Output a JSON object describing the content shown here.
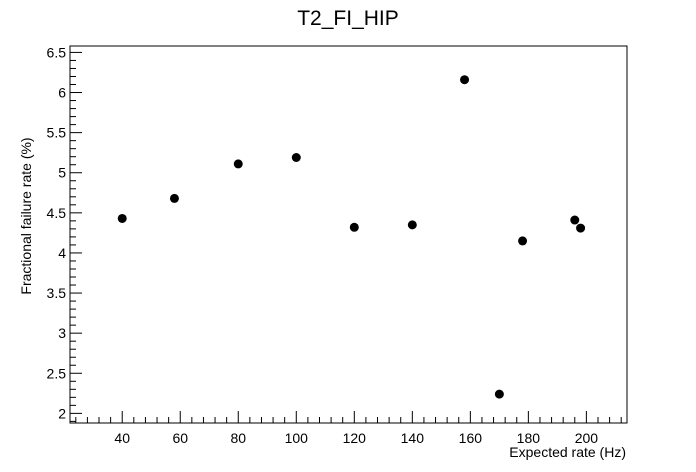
{
  "chart_data": {
    "type": "scatter",
    "title": "T2_FI_HIP",
    "xlabel": "Expected rate (Hz)",
    "ylabel": "Fractional failure rate (%)",
    "xlim": [
      22,
      214
    ],
    "ylim": [
      1.88,
      6.58
    ],
    "xticks": [
      "40",
      "60",
      "80",
      "100",
      "120",
      "140",
      "160",
      "180",
      "200"
    ],
    "yticks": [
      "2",
      "2.5",
      "3",
      "3.5",
      "4",
      "4.5",
      "5",
      "5.5",
      "6",
      "6.5"
    ],
    "grid": false,
    "marker_color": "#000000",
    "points": [
      {
        "x": 40,
        "y": 4.43
      },
      {
        "x": 58,
        "y": 4.68
      },
      {
        "x": 80,
        "y": 5.11
      },
      {
        "x": 100,
        "y": 5.19
      },
      {
        "x": 120,
        "y": 4.32
      },
      {
        "x": 140,
        "y": 4.35
      },
      {
        "x": 158,
        "y": 6.16
      },
      {
        "x": 170,
        "y": 2.24
      },
      {
        "x": 178,
        "y": 4.15
      },
      {
        "x": 196,
        "y": 4.41
      },
      {
        "x": 198,
        "y": 4.31
      }
    ]
  }
}
